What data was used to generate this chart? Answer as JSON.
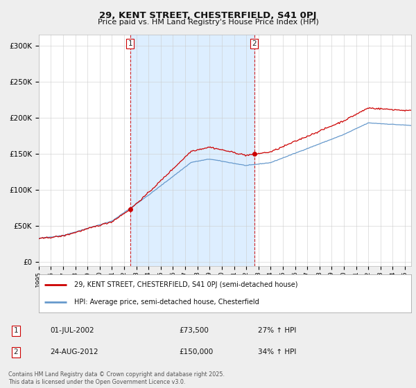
{
  "title": "29, KENT STREET, CHESTERFIELD, S41 0PJ",
  "subtitle": "Price paid vs. HM Land Registry's House Price Index (HPI)",
  "ylabel_ticks": [
    "£0",
    "£50K",
    "£100K",
    "£150K",
    "£200K",
    "£250K",
    "£300K"
  ],
  "ytick_values": [
    0,
    50000,
    100000,
    150000,
    200000,
    250000,
    300000
  ],
  "ylim": [
    -5000,
    315000
  ],
  "xlim_start": 1995.0,
  "xlim_end": 2025.5,
  "legend_line1": "29, KENT STREET, CHESTERFIELD, S41 0PJ (semi-detached house)",
  "legend_line2": "HPI: Average price, semi-detached house, Chesterfield",
  "line1_color": "#cc0000",
  "line2_color": "#6699cc",
  "sale1_date": 2002.5,
  "sale1_price": 73500,
  "sale2_date": 2012.65,
  "sale2_price": 150000,
  "vline_color": "#cc0000",
  "shaded_color": "#ddeeff",
  "annotation1": [
    "1",
    "01-JUL-2002",
    "£73,500",
    "27% ↑ HPI"
  ],
  "annotation2": [
    "2",
    "24-AUG-2012",
    "£150,000",
    "34% ↑ HPI"
  ],
  "footnote": "Contains HM Land Registry data © Crown copyright and database right 2025.\nThis data is licensed under the Open Government Licence v3.0.",
  "background_color": "#eeeeee",
  "plot_bg_color": "#ffffff"
}
